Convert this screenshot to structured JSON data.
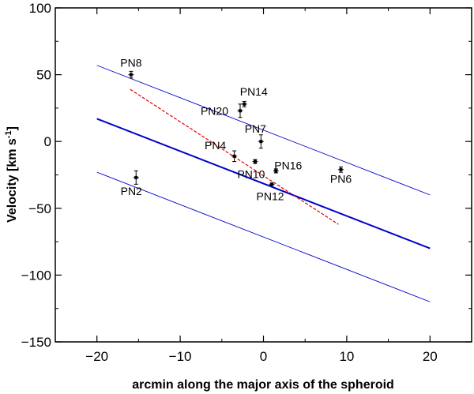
{
  "chart_data": {
    "type": "scatter",
    "title": "",
    "xlabel": "arcmin along the major axis of the spheroid",
    "ylabel_main": "Velocity [km s",
    "ylabel_sup": "-1",
    "ylabel_close": "]",
    "xlim": [
      -25,
      25
    ],
    "ylim": [
      -150,
      100
    ],
    "xticks": [
      -20,
      -10,
      0,
      10,
      20
    ],
    "xtick_labels": [
      "−20",
      "−10",
      "0",
      "10",
      "20"
    ],
    "yticks": [
      -150,
      -100,
      -50,
      0,
      50,
      100
    ],
    "ytick_labels": [
      "−150",
      "−100",
      "−50",
      "0",
      "50",
      "100"
    ],
    "grid": false,
    "points": [
      {
        "label": "PN8",
        "x": -15.9,
        "y": 50,
        "yerr": 2.5
      },
      {
        "label": "PN14",
        "x": -2.3,
        "y": 28,
        "yerr": 2
      },
      {
        "label": "PN20",
        "x": -2.8,
        "y": 23,
        "yerr": 5
      },
      {
        "label": "PN7",
        "x": -0.3,
        "y": 0,
        "yerr": 5
      },
      {
        "label": "PN4",
        "x": -3.5,
        "y": -11,
        "yerr": 4
      },
      {
        "label": "PN16",
        "x": 1.5,
        "y": -22,
        "yerr": 1.5
      },
      {
        "label": "PN10",
        "x": -1.0,
        "y": -15,
        "yerr": 1.5
      },
      {
        "label": "PN12",
        "x": 1.0,
        "y": -32,
        "yerr": 1
      },
      {
        "label": "PN6",
        "x": 9.3,
        "y": -21,
        "yerr": 2
      },
      {
        "label": "PN2",
        "x": -15.3,
        "y": -27,
        "yerr": 5
      }
    ],
    "lines": [
      {
        "kind": "main-fit",
        "color": "#0000cc",
        "x": [
          -20,
          20
        ],
        "y": [
          17,
          -80
        ]
      },
      {
        "kind": "upper-bound",
        "color": "#0000cc",
        "x": [
          -20,
          20
        ],
        "y": [
          57,
          -40
        ]
      },
      {
        "kind": "lower-bound",
        "color": "#0000cc",
        "x": [
          -20,
          20
        ],
        "y": [
          -23,
          -120
        ]
      },
      {
        "kind": "dashed-fit",
        "color": "#dd0000",
        "x": [
          -16,
          9
        ],
        "y": [
          39,
          -62
        ]
      }
    ]
  }
}
